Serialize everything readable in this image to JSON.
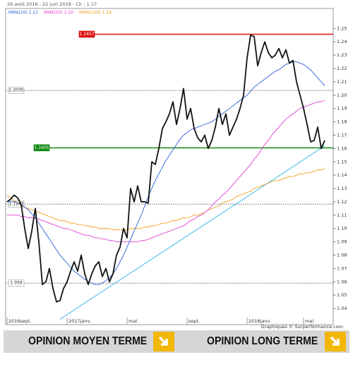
{
  "chart_data": {
    "type": "line",
    "header": "26 août 2016 - 22 juin 2018 - Clr : 1.17",
    "credit": "Graphiques © Surperformance.com",
    "categories": [
      "2016sept.",
      null,
      null,
      null,
      null,
      null,
      null,
      null,
      null,
      null,
      null,
      null,
      null,
      null,
      null,
      null,
      null,
      "2017janv.",
      null,
      null,
      null,
      null,
      null,
      null,
      null,
      null,
      null,
      null,
      null,
      null,
      null,
      null,
      null,
      null,
      "mai",
      null,
      null,
      null,
      null,
      null,
      null,
      null,
      null,
      null,
      null,
      null,
      null,
      null,
      null,
      null,
      null,
      "sept.",
      null,
      null,
      null,
      null,
      null,
      null,
      null,
      null,
      null,
      null,
      null,
      null,
      null,
      null,
      null,
      null,
      "2018janv.",
      null,
      null,
      null,
      null,
      null,
      null,
      null,
      null,
      null,
      null,
      null,
      null,
      null,
      null,
      null,
      "mai",
      null,
      null,
      null,
      null,
      null,
      null
    ],
    "series": [
      {
        "color": "#111111",
        "values": [
          1.12,
          1.122,
          1.125,
          1.123,
          1.118,
          1.1,
          1.085,
          1.098,
          1.115,
          1.09,
          1.058,
          1.06,
          1.07,
          1.055,
          1.045,
          1.046,
          1.055,
          1.06,
          1.068,
          1.075,
          1.068,
          1.08,
          1.066,
          1.058,
          1.066,
          1.072,
          1.075,
          1.064,
          1.07,
          1.06,
          1.066,
          1.08,
          1.086,
          1.1,
          1.093,
          1.13,
          1.12,
          1.132,
          1.12,
          1.12,
          1.119,
          1.15,
          1.148,
          1.16,
          1.175,
          1.18,
          1.186,
          1.195,
          1.178,
          1.19,
          1.205,
          1.182,
          1.19,
          1.175,
          1.168,
          1.165,
          1.17,
          1.16,
          1.166,
          1.176,
          1.19,
          1.178,
          1.186,
          1.17,
          1.176,
          1.182,
          1.19,
          1.2,
          1.228,
          1.245,
          1.244,
          1.222,
          1.232,
          1.24,
          1.232,
          1.228,
          1.23,
          1.235,
          1.228,
          1.234,
          1.224,
          1.226,
          1.21,
          1.2,
          1.19,
          1.178,
          1.165,
          1.166,
          1.176,
          1.16,
          1.166
        ]
      },
      {
        "name": "MMA(20) 1.21",
        "color": "#2b5fd9",
        "values": [
          1.12,
          1.12,
          1.12,
          1.119,
          1.118,
          1.116,
          1.114,
          1.111,
          1.108,
          1.104,
          1.1,
          1.096,
          1.092,
          1.088,
          1.084,
          1.08,
          1.077,
          1.074,
          1.071,
          1.068,
          1.066,
          1.064,
          1.062,
          1.06,
          1.059,
          1.058,
          1.058,
          1.059,
          1.061,
          1.063,
          1.066,
          1.07,
          1.075,
          1.08,
          1.086,
          1.092,
          1.098,
          1.104,
          1.11,
          1.117,
          1.124,
          1.13,
          1.136,
          1.141,
          1.146,
          1.151,
          1.155,
          1.159,
          1.163,
          1.167,
          1.17,
          1.172,
          1.174,
          1.175,
          1.176,
          1.177,
          1.178,
          1.179,
          1.18,
          1.182,
          1.184,
          1.186,
          1.188,
          1.19,
          1.192,
          1.194,
          1.196,
          1.198,
          1.2,
          1.203,
          1.206,
          1.208,
          1.21,
          1.212,
          1.214,
          1.216,
          1.218,
          1.219,
          1.221,
          1.223,
          1.224,
          1.225,
          1.225,
          1.224,
          1.223,
          1.221,
          1.219,
          1.216,
          1.213,
          1.21,
          1.207
        ]
      },
      {
        "name": "MMA(50) 1.20",
        "color": "#e040d0",
        "values": [
          1.11,
          1.11,
          1.11,
          1.11,
          1.109,
          1.109,
          1.108,
          1.108,
          1.108,
          1.107,
          1.106,
          1.105,
          1.104,
          1.103,
          1.102,
          1.101,
          1.1,
          1.1,
          1.099,
          1.098,
          1.097,
          1.096,
          1.095,
          1.095,
          1.094,
          1.093,
          1.093,
          1.092,
          1.092,
          1.091,
          1.091,
          1.09,
          1.09,
          1.09,
          1.09,
          1.09,
          1.09,
          1.09,
          1.091,
          1.091,
          1.092,
          1.093,
          1.094,
          1.095,
          1.096,
          1.097,
          1.098,
          1.099,
          1.1,
          1.101,
          1.102,
          1.104,
          1.106,
          1.107,
          1.109,
          1.11,
          1.112,
          1.114,
          1.117,
          1.12,
          1.122,
          1.125,
          1.127,
          1.13,
          1.133,
          1.136,
          1.139,
          1.142,
          1.145,
          1.148,
          1.152,
          1.155,
          1.159,
          1.163,
          1.166,
          1.17,
          1.173,
          1.176,
          1.179,
          1.182,
          1.184,
          1.186,
          1.188,
          1.19,
          1.191,
          1.192,
          1.193,
          1.194,
          1.195,
          1.195,
          1.196
        ]
      },
      {
        "name": "MMA(100) 1.14",
        "color": "#f0a020",
        "values": [
          1.125,
          1.123,
          1.121,
          1.119,
          1.117,
          1.116,
          1.115,
          1.114,
          1.113,
          1.112,
          1.111,
          1.11,
          1.109,
          1.108,
          1.107,
          1.106,
          1.106,
          1.105,
          1.104,
          1.104,
          1.103,
          1.103,
          1.102,
          1.102,
          1.101,
          1.101,
          1.1,
          1.1,
          1.1,
          1.1,
          1.099,
          1.099,
          1.099,
          1.099,
          1.099,
          1.1,
          1.1,
          1.1,
          1.1,
          1.101,
          1.101,
          1.102,
          1.102,
          1.103,
          1.104,
          1.104,
          1.105,
          1.106,
          1.106,
          1.107,
          1.108,
          1.108,
          1.109,
          1.11,
          1.11,
          1.111,
          1.112,
          1.114,
          1.115,
          1.116,
          1.117,
          1.119,
          1.12,
          1.121,
          1.122,
          1.124,
          1.125,
          1.126,
          1.127,
          1.128,
          1.13,
          1.131,
          1.132,
          1.133,
          1.134,
          1.135,
          1.136,
          1.136,
          1.137,
          1.138,
          1.139,
          1.139,
          1.14,
          1.141,
          1.141,
          1.142,
          1.142,
          1.143,
          1.144,
          1.144,
          1.145
        ]
      }
    ],
    "trendline": {
      "color": "#40b8ea",
      "x": [
        15,
        90
      ],
      "values": [
        1.032,
        1.162
      ]
    },
    "levels": [
      {
        "value": 1.2457,
        "color": "#e01010",
        "style": "solid"
      },
      {
        "value": 1.2035,
        "color": "#777777",
        "style": "dotted"
      },
      {
        "value": 1.1605,
        "color": "#118811",
        "style": "solid"
      },
      {
        "value": 1.1183,
        "color": "#777777",
        "style": "dotted"
      },
      {
        "value": 1.059,
        "color": "#777777",
        "style": "dotted"
      }
    ],
    "ylim": [
      1.03,
      1.265
    ],
    "yticks": [
      1.04,
      1.05,
      1.06,
      1.07,
      1.08,
      1.09,
      {
        "value": 1.1,
        "label": "1.10"
      },
      1.11,
      1.12,
      1.13,
      1.14,
      1.15,
      1.16,
      1.17,
      1.18,
      1.19,
      {
        "value": 1.2,
        "label": "1.20"
      },
      1.21,
      1.22,
      1.23,
      1.24,
      1.25
    ]
  },
  "buttons": [
    "OPINION MOYEN TERME",
    "OPINION LONG TERME"
  ]
}
